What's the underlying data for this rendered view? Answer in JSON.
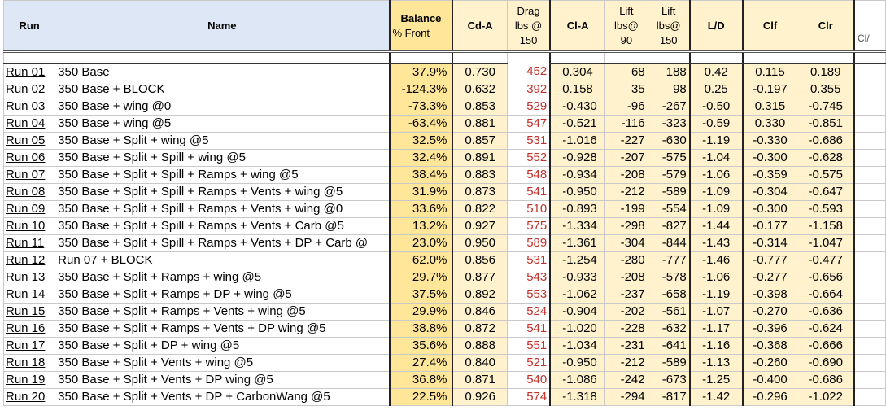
{
  "headers": {
    "run": "Run",
    "name": "Name",
    "balance_1": "Balance",
    "balance_2": "% Front",
    "cda": "Cd-A",
    "drag_1": "Drag",
    "drag_2": "lbs @",
    "drag_3": "150",
    "cla": "Cl-A",
    "lift90_1": "Lift",
    "lift90_2": "lbs@",
    "lift90_3": "90",
    "lift150_1": "Lift",
    "lift150_2": "lbs@",
    "lift150_3": "150",
    "ld": "L/D",
    "clf": "Clf",
    "clr": "Clr",
    "next_col": "Cl/"
  },
  "rows": [
    {
      "run": "Run 01",
      "name": "350 Base",
      "balance": "37.9%",
      "cda": "0.730",
      "drag": "452",
      "cla": "0.304",
      "lift90": "68",
      "lift150": "188",
      "ld": "0.42",
      "clf": "0.115",
      "clr": "0.189"
    },
    {
      "run": "Run 02",
      "name": "350 Base + BLOCK",
      "balance": "-124.3%",
      "cda": "0.632",
      "drag": "392",
      "cla": "0.158",
      "lift90": "35",
      "lift150": "98",
      "ld": "0.25",
      "clf": "-0.197",
      "clr": "0.355"
    },
    {
      "run": "Run 03",
      "name": "350 Base + wing @0",
      "balance": "-73.3%",
      "cda": "0.853",
      "drag": "529",
      "cla": "-0.430",
      "lift90": "-96",
      "lift150": "-267",
      "ld": "-0.50",
      "clf": "0.315",
      "clr": "-0.745"
    },
    {
      "run": "Run 04",
      "name": "350 Base + wing @5",
      "balance": "-63.4%",
      "cda": "0.881",
      "drag": "547",
      "cla": "-0.521",
      "lift90": "-116",
      "lift150": "-323",
      "ld": "-0.59",
      "clf": "0.330",
      "clr": "-0.851"
    },
    {
      "run": "Run 05",
      "name": "350 Base + Split + wing @5",
      "balance": "32.5%",
      "cda": "0.857",
      "drag": "531",
      "cla": "-1.016",
      "lift90": "-227",
      "lift150": "-630",
      "ld": "-1.19",
      "clf": "-0.330",
      "clr": "-0.686"
    },
    {
      "run": "Run 06",
      "name": "350 Base + Split + Spill + wing @5",
      "balance": "32.4%",
      "cda": "0.891",
      "drag": "552",
      "cla": "-0.928",
      "lift90": "-207",
      "lift150": "-575",
      "ld": "-1.04",
      "clf": "-0.300",
      "clr": "-0.628"
    },
    {
      "run": "Run 07",
      "name": "350 Base + Split + Spill + Ramps + wing @5",
      "balance": "38.4%",
      "cda": "0.883",
      "drag": "548",
      "cla": "-0.934",
      "lift90": "-208",
      "lift150": "-579",
      "ld": "-1.06",
      "clf": "-0.359",
      "clr": "-0.575"
    },
    {
      "run": "Run 08",
      "name": "350 Base + Split + Spill + Ramps + Vents + wing @5",
      "balance": "31.9%",
      "cda": "0.873",
      "drag": "541",
      "cla": "-0.950",
      "lift90": "-212",
      "lift150": "-589",
      "ld": "-1.09",
      "clf": "-0.304",
      "clr": "-0.647"
    },
    {
      "run": "Run 09",
      "name": "350 Base + Split + Spill + Ramps + Vents + wing @0",
      "balance": "33.6%",
      "cda": "0.822",
      "drag": "510",
      "cla": "-0.893",
      "lift90": "-199",
      "lift150": "-554",
      "ld": "-1.09",
      "clf": "-0.300",
      "clr": "-0.593"
    },
    {
      "run": "Run 10",
      "name": "350 Base + Split + Spill + Ramps + Vents + Carb @5",
      "balance": "13.2%",
      "cda": "0.927",
      "drag": "575",
      "cla": "-1.334",
      "lift90": "-298",
      "lift150": "-827",
      "ld": "-1.44",
      "clf": "-0.177",
      "clr": "-1.158"
    },
    {
      "run": "Run 11",
      "name": "350 Base + Split + Spill + Ramps + Vents + DP + Carb @",
      "balance": "23.0%",
      "cda": "0.950",
      "drag": "589",
      "cla": "-1.361",
      "lift90": "-304",
      "lift150": "-844",
      "ld": "-1.43",
      "clf": "-0.314",
      "clr": "-1.047"
    },
    {
      "run": "Run 12",
      "name": "Run 07 + BLOCK",
      "balance": "62.0%",
      "cda": "0.856",
      "drag": "531",
      "cla": "-1.254",
      "lift90": "-280",
      "lift150": "-777",
      "ld": "-1.46",
      "clf": "-0.777",
      "clr": "-0.477"
    },
    {
      "run": "Run 13",
      "name": "350 Base + Split + Ramps + wing @5",
      "balance": "29.7%",
      "cda": "0.877",
      "drag": "543",
      "cla": "-0.933",
      "lift90": "-208",
      "lift150": "-578",
      "ld": "-1.06",
      "clf": "-0.277",
      "clr": "-0.656"
    },
    {
      "run": "Run 14",
      "name": "350 Base + Split + Ramps + DP + wing @5",
      "balance": "37.5%",
      "cda": "0.892",
      "drag": "553",
      "cla": "-1.062",
      "lift90": "-237",
      "lift150": "-658",
      "ld": "-1.19",
      "clf": "-0.398",
      "clr": "-0.664"
    },
    {
      "run": "Run 15",
      "name": "350 Base + Split + Ramps + Vents + wing @5",
      "balance": "29.9%",
      "cda": "0.846",
      "drag": "524",
      "cla": "-0.904",
      "lift90": "-202",
      "lift150": "-561",
      "ld": "-1.07",
      "clf": "-0.270",
      "clr": "-0.636"
    },
    {
      "run": "Run 16",
      "name": "350 Base + Split + Ramps + Vents + DP wing @5",
      "balance": "38.8%",
      "cda": "0.872",
      "drag": "541",
      "cla": "-1.020",
      "lift90": "-228",
      "lift150": "-632",
      "ld": "-1.17",
      "clf": "-0.396",
      "clr": "-0.624"
    },
    {
      "run": "Run 17",
      "name": "350 Base + Split + DP + wing @5",
      "balance": "35.6%",
      "cda": "0.888",
      "drag": "551",
      "cla": "-1.034",
      "lift90": "-231",
      "lift150": "-641",
      "ld": "-1.16",
      "clf": "-0.368",
      "clr": "-0.666"
    },
    {
      "run": "Run 18",
      "name": "350 Base + Split + Vents + wing @5",
      "balance": "27.4%",
      "cda": "0.840",
      "drag": "521",
      "cla": "-0.950",
      "lift90": "-212",
      "lift150": "-589",
      "ld": "-1.13",
      "clf": "-0.260",
      "clr": "-0.690"
    },
    {
      "run": "Run 19",
      "name": "350 Base + Split + Vents + DP wing @5",
      "balance": "36.8%",
      "cda": "0.871",
      "drag": "540",
      "cla": "-1.086",
      "lift90": "-242",
      "lift150": "-673",
      "ld": "-1.25",
      "clf": "-0.400",
      "clr": "-0.686"
    },
    {
      "run": "Run 20",
      "name": "350 Base + Split + Vents + DP + CarbonWang @5",
      "balance": "22.5%",
      "cda": "0.926",
      "drag": "574",
      "cla": "-1.318",
      "lift90": "-294",
      "lift150": "-817",
      "ld": "-1.42",
      "clf": "-0.296",
      "clr": "-1.022"
    }
  ],
  "colors": {
    "header_bg": "#dde7f5",
    "balance_bg": "#ffe699",
    "light_yellow_bg": "#fff2cc",
    "drag_text": "#c0312b",
    "selection_border": "#1f6fce"
  }
}
